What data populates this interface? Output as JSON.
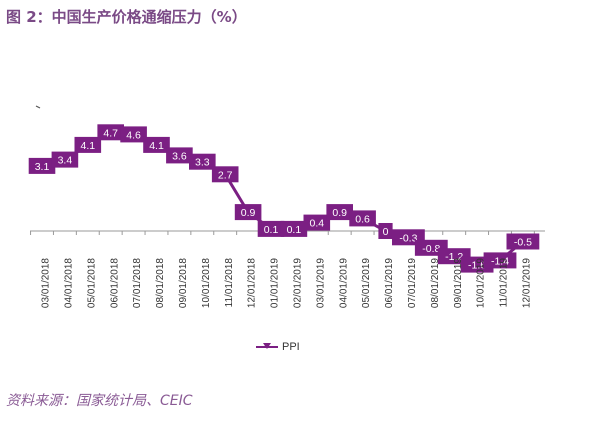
{
  "figure_title": "图 2：中国生产价格通缩压力（%）",
  "source": "资料来源：国家统计局、CEIC",
  "colors": {
    "line": "#7b1f83",
    "label_bg": "#7b1f83",
    "label_text": "#ffffff",
    "axis": "#9a9a9a",
    "tick_text": "#333333",
    "title": "#7a4a86"
  },
  "chart_data": {
    "type": "line",
    "title": "",
    "xlabel": "",
    "ylabel": "",
    "legend_position": "bottom",
    "categories": [
      "03/01/2018",
      "04/01/2018",
      "05/01/2018",
      "06/01/2018",
      "07/01/2018",
      "08/01/2018",
      "09/01/2018",
      "10/01/2018",
      "11/01/2018",
      "12/01/2018",
      "01/01/2019",
      "02/01/2019",
      "03/01/2019",
      "04/01/2019",
      "05/01/2019",
      "06/01/2019",
      "07/01/2019",
      "08/01/2019",
      "09/01/2019",
      "10/01/2019",
      "11/01/2019",
      "12/01/2019"
    ],
    "series": [
      {
        "name": "PPI",
        "values": [
          3.1,
          3.4,
          4.1,
          4.7,
          4.6,
          4.1,
          3.6,
          3.3,
          2.7,
          0.9,
          0.1,
          0.1,
          0.4,
          0.9,
          0.6,
          0,
          -0.3,
          -0.8,
          -1.2,
          -1.6,
          -1.4,
          -0.5
        ]
      }
    ]
  }
}
